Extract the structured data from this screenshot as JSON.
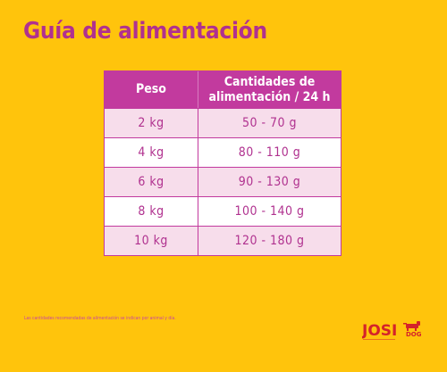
{
  "title": "Guía de alimentación",
  "table": {
    "headers": [
      "Peso",
      "Cantidades de alimentación / 24 h"
    ],
    "rows": [
      [
        "2 kg",
        "50 - 70 g"
      ],
      [
        "4 kg",
        "80 - 110 g"
      ],
      [
        "6 kg",
        "90 - 130 g"
      ],
      [
        "8 kg",
        "100 - 140 g"
      ],
      [
        "10 kg",
        "120 - 180 g"
      ]
    ]
  },
  "footnote": "Las cantidades recomendadas de alimentación se indican por animal y día.",
  "logo": {
    "brand": "JOSI",
    "sub": "DOG",
    "icon": "dog-icon"
  },
  "colors": {
    "background": "#FFC40C",
    "accent": "#C23A9E",
    "row_alt": "#F7DDEB"
  }
}
